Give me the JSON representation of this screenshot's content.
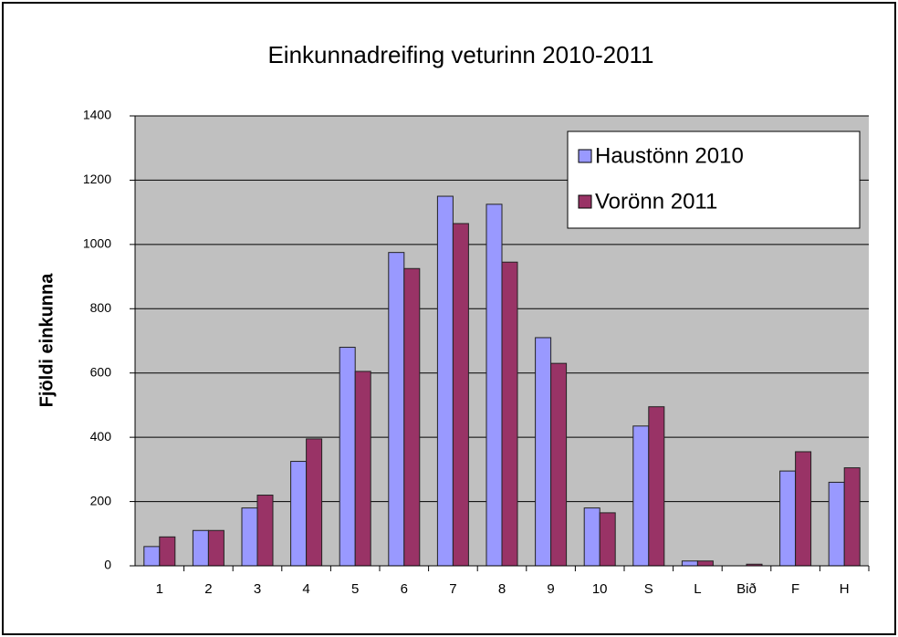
{
  "chart_data": {
    "type": "bar",
    "title": "Einkunnadreifing veturinn 2010-2011",
    "y_label": "Fjöldi einkunna",
    "categories": [
      "1",
      "2",
      "3",
      "4",
      "5",
      "6",
      "7",
      "8",
      "9",
      "10",
      "S",
      "L",
      "Bið",
      "F",
      "H"
    ],
    "series": [
      {
        "name": "Haustönn 2010",
        "color": "#9999ff",
        "values": [
          60,
          110,
          180,
          325,
          680,
          975,
          1150,
          1125,
          710,
          180,
          435,
          15,
          0,
          295,
          260
        ]
      },
      {
        "name": "Vorönn 2011",
        "color": "#993366",
        "values": [
          90,
          110,
          220,
          395,
          605,
          925,
          1065,
          945,
          630,
          165,
          495,
          15,
          5,
          355,
          305
        ]
      }
    ],
    "ylim": [
      0,
      1400
    ],
    "yticks": [
      0,
      200,
      400,
      600,
      800,
      1000,
      1200,
      1400
    ],
    "grid": true,
    "legend": "top-right"
  }
}
